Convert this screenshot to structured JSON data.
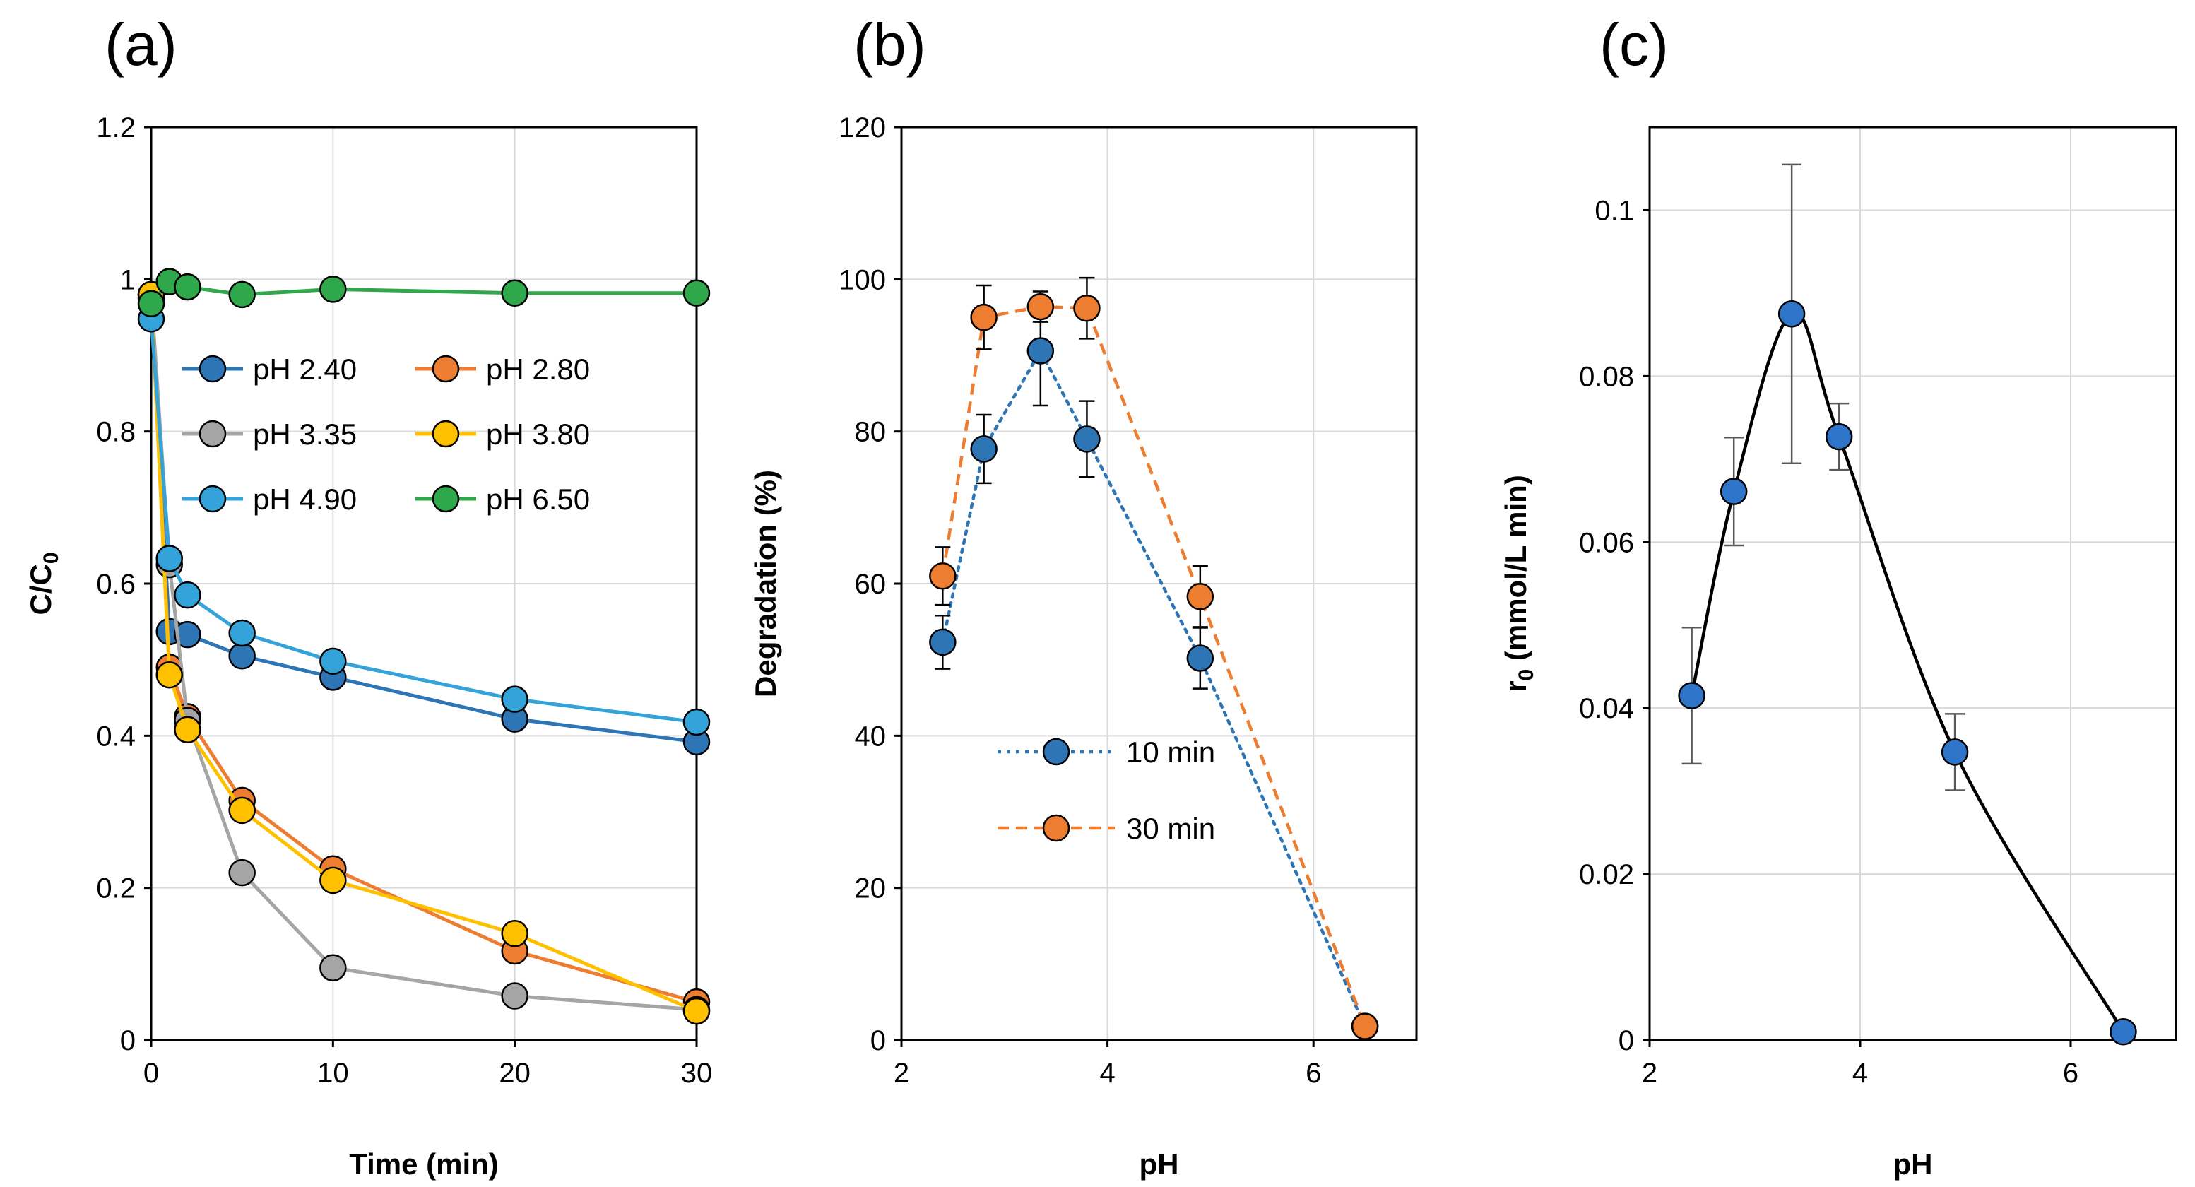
{
  "panels": {
    "a": {
      "label": "(a)"
    },
    "b": {
      "label": "(b)"
    },
    "c": {
      "label": "(c)"
    }
  },
  "colors": {
    "pH 2.40": "#2E75B6",
    "pH 2.80": "#ED7D31",
    "pH 3.35": "#A5A5A5",
    "pH 3.80": "#FFC000",
    "pH 4.90": "#34A3D9",
    "pH 6.50": "#2EA84A",
    "10 min": "#2E75B6",
    "30 min": "#ED7D31",
    "c": "#2E75C9"
  },
  "chart_data": [
    {
      "id": "a",
      "type": "line",
      "title": "(a)",
      "xlabel": "Time (min)",
      "ylabel": "C/C",
      "ylabel_sub": "0",
      "xlim": [
        0,
        30
      ],
      "ylim": [
        0,
        1.2
      ],
      "xticks": [
        "0",
        "10",
        "20",
        "30"
      ],
      "yticks": [
        "0",
        "0.2",
        "0.4",
        "0.6",
        "0.8",
        "1",
        "1.2"
      ],
      "x": [
        0,
        1,
        2,
        5,
        10,
        20,
        30
      ],
      "legend_position": "middle",
      "series": [
        {
          "name": "pH 2.40",
          "values": [
            0.975,
            0.537,
            0.533,
            0.505,
            0.477,
            0.422,
            0.392
          ]
        },
        {
          "name": "pH 2.80",
          "values": [
            0.98,
            0.49,
            0.425,
            0.315,
            0.225,
            0.117,
            0.05
          ]
        },
        {
          "name": "pH 3.35",
          "values": [
            0.98,
            0.625,
            0.42,
            0.22,
            0.095,
            0.058,
            0.04
          ]
        },
        {
          "name": "pH 3.80",
          "values": [
            0.98,
            0.48,
            0.408,
            0.302,
            0.21,
            0.14,
            0.038
          ]
        },
        {
          "name": "pH 4.90",
          "values": [
            0.948,
            0.633,
            0.585,
            0.535,
            0.498,
            0.448,
            0.418
          ]
        },
        {
          "name": "pH 6.50",
          "values": [
            0.968,
            0.997,
            0.99,
            0.98,
            0.987,
            0.982,
            0.982
          ]
        }
      ]
    },
    {
      "id": "b",
      "type": "line",
      "title": "(b)",
      "xlabel": "pH",
      "ylabel": "Degradation (%)",
      "xlim": [
        2,
        7
      ],
      "ylim": [
        0,
        120
      ],
      "xticks": [
        "2",
        "4",
        "6"
      ],
      "yticks": [
        "0",
        "20",
        "40",
        "60",
        "80",
        "100",
        "120"
      ],
      "x": [
        2.4,
        2.8,
        3.35,
        3.8,
        4.9,
        6.5
      ],
      "legend_position": "center-left",
      "series": [
        {
          "name": "10 min",
          "line": "dotted",
          "values": [
            52.3,
            77.7,
            90.6,
            79.0,
            50.2,
            1.8
          ],
          "errors": [
            3.5,
            4.5,
            7.2,
            5.0,
            4.0,
            0
          ]
        },
        {
          "name": "30 min",
          "line": "dashed",
          "values": [
            61.0,
            95.0,
            96.4,
            96.2,
            58.3,
            1.8
          ],
          "errors": [
            3.8,
            4.2,
            2.0,
            4.0,
            4.0,
            0
          ]
        }
      ]
    },
    {
      "id": "c",
      "type": "line",
      "title": "(c)",
      "xlabel": "pH",
      "ylabel": "r",
      "ylabel_sub": "0",
      "ylabel_rest": " (mmol/L min)",
      "xlim": [
        2,
        7
      ],
      "ylim": [
        0,
        0.11
      ],
      "xticks": [
        "2",
        "4",
        "6"
      ],
      "yticks": [
        "0",
        "0.02",
        "0.04",
        "0.06",
        "0.08",
        "0.1"
      ],
      "x": [
        2.4,
        2.8,
        3.35,
        3.8,
        4.9,
        6.5
      ],
      "series": [
        {
          "name": "r0",
          "line": "smooth",
          "values": [
            0.0415,
            0.0661,
            0.0875,
            0.0727,
            0.0347,
            0.001
          ],
          "errors": [
            0.0082,
            0.0065,
            0.018,
            0.004,
            0.0046,
            0
          ]
        }
      ]
    }
  ]
}
